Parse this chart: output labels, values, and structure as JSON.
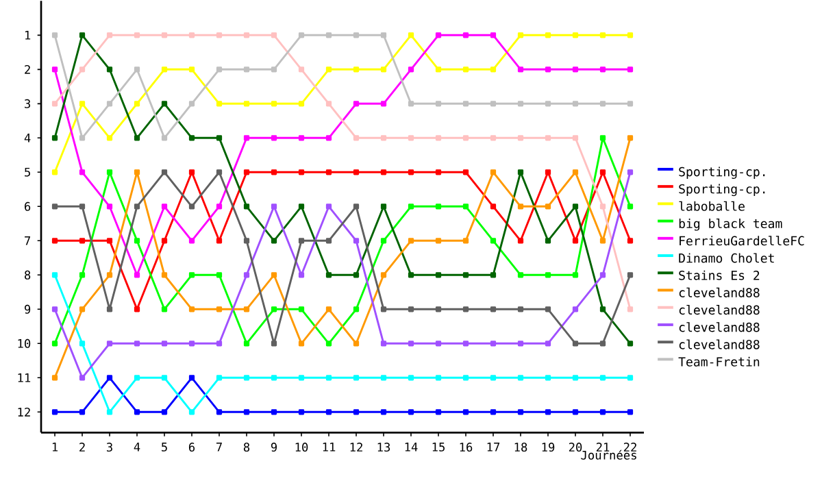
{
  "chart_data": {
    "type": "line",
    "xlabel": "Journées",
    "x": [
      1,
      2,
      3,
      4,
      5,
      6,
      7,
      8,
      9,
      10,
      11,
      12,
      13,
      14,
      15,
      16,
      17,
      18,
      19,
      20,
      21,
      22
    ],
    "xlim": [
      0.5,
      22.5
    ],
    "xticks": [
      1,
      2,
      3,
      4,
      5,
      6,
      7,
      8,
      9,
      10,
      11,
      12,
      13,
      14,
      15,
      16,
      17,
      18,
      19,
      20,
      21,
      22
    ],
    "ylim": [
      12.6,
      0
    ],
    "yticks": [
      1,
      2,
      3,
      4,
      5,
      6,
      7,
      8,
      9,
      10,
      11,
      12
    ],
    "grid": false,
    "legend": "right",
    "marker": "square",
    "line_style": "solid",
    "series": [
      {
        "name": "Sporting-cp.",
        "color": "#0000ff",
        "values": [
          12,
          12,
          11,
          12,
          12,
          11,
          12,
          12,
          12,
          12,
          12,
          12,
          12,
          12,
          12,
          12,
          12,
          12,
          12,
          12,
          12,
          12
        ]
      },
      {
        "name": "Sporting-cp.",
        "color": "#ff0000",
        "values": [
          7,
          7,
          7,
          9,
          7,
          5,
          7,
          5,
          5,
          5,
          5,
          5,
          5,
          5,
          5,
          5,
          6,
          7,
          5,
          7,
          5,
          7
        ]
      },
      {
        "name": "laboballe",
        "color": "#ffff00",
        "values": [
          5,
          3,
          4,
          3,
          2,
          2,
          3,
          3,
          3,
          3,
          2,
          2,
          2,
          1,
          2,
          2,
          2,
          1,
          1,
          1,
          1,
          1
        ]
      },
      {
        "name": "big black team",
        "color": "#00ff00",
        "values": [
          10,
          8,
          5,
          7,
          9,
          8,
          8,
          10,
          9,
          9,
          10,
          9,
          7,
          6,
          6,
          6,
          7,
          8,
          8,
          8,
          4,
          6
        ]
      },
      {
        "name": "FerrieuGardelleFC",
        "color": "#ff00ff",
        "values": [
          2,
          5,
          6,
          8,
          6,
          7,
          6,
          4,
          4,
          4,
          4,
          3,
          3,
          2,
          1,
          1,
          1,
          2,
          2,
          2,
          2,
          2
        ]
      },
      {
        "name": "Dinamo Cholet",
        "color": "#00ffff",
        "values": [
          8,
          10,
          12,
          11,
          11,
          12,
          11,
          11,
          11,
          11,
          11,
          11,
          11,
          11,
          11,
          11,
          11,
          11,
          11,
          11,
          11,
          11
        ]
      },
      {
        "name": "Stains Es 2",
        "color": "#006400",
        "values": [
          4,
          1,
          2,
          4,
          3,
          4,
          4,
          6,
          7,
          6,
          8,
          8,
          6,
          8,
          8,
          8,
          8,
          5,
          7,
          6,
          9,
          10
        ]
      },
      {
        "name": "cleveland88",
        "color": "#ff9900",
        "values": [
          11,
          9,
          8,
          5,
          8,
          9,
          9,
          9,
          8,
          10,
          9,
          10,
          8,
          7,
          7,
          7,
          5,
          6,
          6,
          5,
          7,
          4
        ]
      },
      {
        "name": "cleveland88",
        "color": "#ffc0c0",
        "values": [
          3,
          2,
          1,
          1,
          1,
          1,
          1,
          1,
          1,
          2,
          3,
          4,
          4,
          4,
          4,
          4,
          4,
          4,
          4,
          4,
          6,
          9
        ]
      },
      {
        "name": "cleveland88",
        "color": "#a050ff",
        "values": [
          9,
          11,
          10,
          10,
          10,
          10,
          10,
          8,
          6,
          8,
          6,
          7,
          10,
          10,
          10,
          10,
          10,
          10,
          10,
          9,
          8,
          5
        ]
      },
      {
        "name": "cleveland88",
        "color": "#606060",
        "values": [
          6,
          6,
          9,
          6,
          5,
          6,
          5,
          7,
          10,
          7,
          7,
          6,
          9,
          9,
          9,
          9,
          9,
          9,
          9,
          10,
          10,
          8
        ]
      },
      {
        "name": "Team-Fretin",
        "color": "#c0c0c0",
        "values": [
          1,
          4,
          3,
          2,
          4,
          3,
          2,
          2,
          2,
          1,
          1,
          1,
          1,
          3,
          3,
          3,
          3,
          3,
          3,
          3,
          3,
          3
        ]
      }
    ]
  }
}
